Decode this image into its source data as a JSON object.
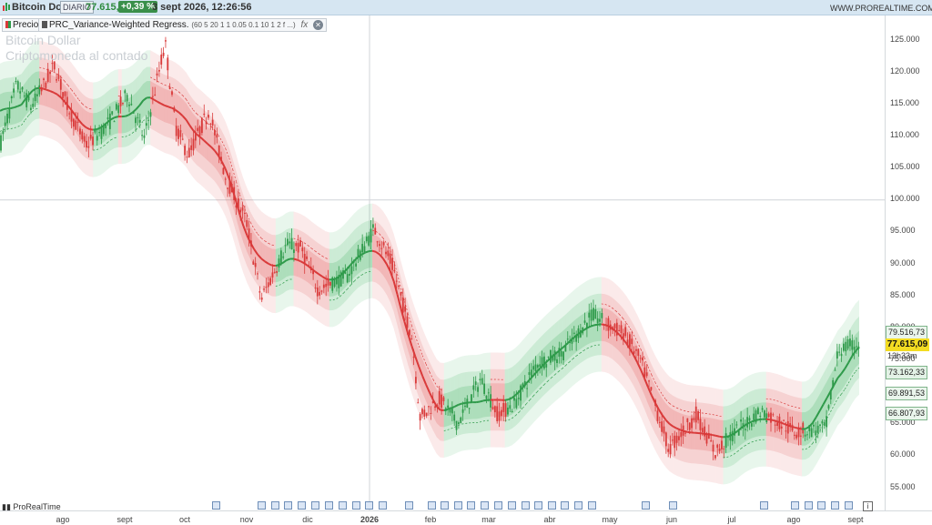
{
  "header": {
    "symbol": "Bitcoin Dollar",
    "timeframe": "DIARIO",
    "last_price": "77.615,09",
    "change_pct": "+0,39 %",
    "datetime": "3 sept 2026, 12:26:56",
    "site": "WWW.PROREALTIME.COM"
  },
  "legend": {
    "price_label": "Precio",
    "indicator_label": "PRC_Variance-Weighted Regress.",
    "indicator_params": "(60 5 20 1 1 0.05 0.1 10 1 2 f ...)",
    "fx_label": "fx",
    "close_label": "✕"
  },
  "watermark": {
    "line1": "Bitcoin Dollar",
    "line2": "Criptomoneda al contado"
  },
  "y_axis": {
    "ticks": [
      "125.000",
      "120.000",
      "115.000",
      "110.000",
      "105.000",
      "100.000",
      "95.000",
      "90.000",
      "85.000",
      "80.000",
      "75.000",
      "70.000",
      "65.000",
      "60.000",
      "55.000"
    ],
    "price_tags": [
      "79.516,73",
      "73.162,33",
      "69.891,53",
      "66.807,93"
    ],
    "current_price": "77.615,09",
    "countdown": "13h33m"
  },
  "x_axis": {
    "ticks": [
      "ago",
      "sept",
      "oct",
      "nov",
      "dic",
      "2026",
      "feb",
      "mar",
      "abr",
      "may",
      "jun",
      "jul",
      "ago",
      "sept"
    ]
  },
  "footer": {
    "brand": "ProRealTime",
    "info_icon_label": "i"
  },
  "colors": {
    "bull": "#2e9a4a",
    "bear": "#d93a3a",
    "bull_band": "#3fb35f",
    "bear_band": "#e25555",
    "current_tag": "#f3dc22"
  },
  "icons": {
    "symbol": "bars-icon",
    "indicator": "bars-icon",
    "fx": "fx-icon",
    "close": "close-circle-icon",
    "events": "calendar-event-icon",
    "brand": "chart-bars-icon"
  },
  "chart_data": {
    "type": "candlestick",
    "y_range": [
      52000,
      128000
    ],
    "x_start": "2025-07-19",
    "x_end": "2026-09-03",
    "close_path": [
      {
        "date": "2025-07-19",
        "value": 108500
      },
      {
        "date": "2025-07-27",
        "value": 118000
      },
      {
        "date": "2025-08-03",
        "value": 114500
      },
      {
        "date": "2025-08-14",
        "value": 121000
      },
      {
        "date": "2025-08-20",
        "value": 115000
      },
      {
        "date": "2025-08-29",
        "value": 108500
      },
      {
        "date": "2025-09-08",
        "value": 111500
      },
      {
        "date": "2025-09-18",
        "value": 116500
      },
      {
        "date": "2025-09-26",
        "value": 109500
      },
      {
        "date": "2025-10-06",
        "value": 124500
      },
      {
        "date": "2025-10-11",
        "value": 111500
      },
      {
        "date": "2025-10-17",
        "value": 107000
      },
      {
        "date": "2025-10-27",
        "value": 114000
      },
      {
        "date": "2025-11-04",
        "value": 103500
      },
      {
        "date": "2025-11-14",
        "value": 96500
      },
      {
        "date": "2025-11-21",
        "value": 84500
      },
      {
        "date": "2025-12-03",
        "value": 93000
      },
      {
        "date": "2025-12-10",
        "value": 92500
      },
      {
        "date": "2025-12-18",
        "value": 86000
      },
      {
        "date": "2026-01-01",
        "value": 88000
      },
      {
        "date": "2026-01-14",
        "value": 95500
      },
      {
        "date": "2026-01-23",
        "value": 89500
      },
      {
        "date": "2026-02-01",
        "value": 78500
      },
      {
        "date": "2026-02-05",
        "value": 66000
      },
      {
        "date": "2026-02-14",
        "value": 69000
      },
      {
        "date": "2026-02-23",
        "value": 65000
      },
      {
        "date": "2026-03-06",
        "value": 72000
      },
      {
        "date": "2026-03-14",
        "value": 66500
      },
      {
        "date": "2026-03-22",
        "value": 68000
      },
      {
        "date": "2026-04-02",
        "value": 74500
      },
      {
        "date": "2026-04-14",
        "value": 76000
      },
      {
        "date": "2026-04-28",
        "value": 82000
      },
      {
        "date": "2026-05-14",
        "value": 79000
      },
      {
        "date": "2026-05-22",
        "value": 74500
      },
      {
        "date": "2026-06-04",
        "value": 61000
      },
      {
        "date": "2026-06-17",
        "value": 66500
      },
      {
        "date": "2026-06-26",
        "value": 60500
      },
      {
        "date": "2026-07-05",
        "value": 63500
      },
      {
        "date": "2026-07-18",
        "value": 67000
      },
      {
        "date": "2026-08-03",
        "value": 63800
      },
      {
        "date": "2026-08-18",
        "value": 64200
      },
      {
        "date": "2026-08-24",
        "value": 76500
      },
      {
        "date": "2026-09-03",
        "value": 77600
      }
    ]
  }
}
